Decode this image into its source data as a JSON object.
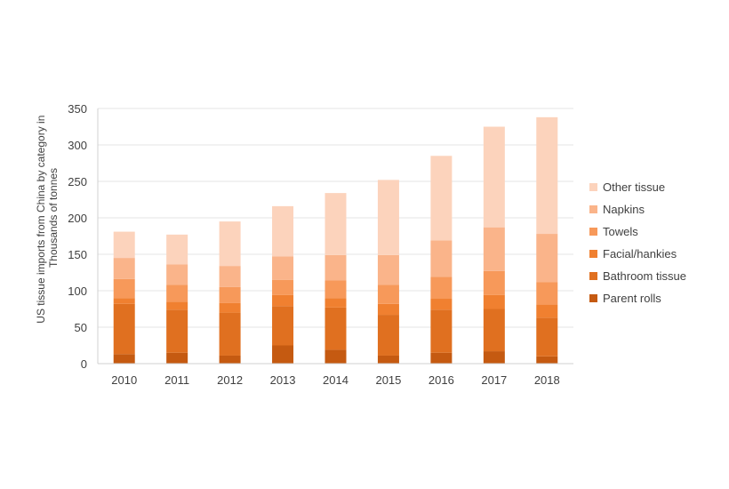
{
  "chart_data": {
    "type": "bar",
    "stacked": true,
    "categories": [
      "2010",
      "2011",
      "2012",
      "2013",
      "2014",
      "2015",
      "2016",
      "2017",
      "2018"
    ],
    "series": [
      {
        "name": "Parent rolls",
        "color": "#c55a11",
        "values": [
          13,
          15,
          11,
          25,
          19,
          11,
          15,
          17,
          10
        ]
      },
      {
        "name": "Bathroom tissue",
        "color": "#e07020",
        "values": [
          69,
          59,
          59,
          54,
          58,
          56,
          59,
          58,
          53
        ]
      },
      {
        "name": "Facial/hankies",
        "color": "#f08030",
        "values": [
          8,
          11,
          13,
          15,
          13,
          15,
          15,
          19,
          18
        ]
      },
      {
        "name": "Towels",
        "color": "#f7995a",
        "values": [
          26,
          23,
          22,
          21,
          24,
          26,
          30,
          33,
          31
        ]
      },
      {
        "name": "Napkins",
        "color": "#fab48a",
        "values": [
          29,
          28,
          29,
          32,
          35,
          41,
          50,
          60,
          66
        ]
      },
      {
        "name": "Other tissue",
        "color": "#fcd3bc",
        "values": [
          36,
          41,
          61,
          69,
          85,
          103,
          116,
          138,
          160
        ]
      }
    ],
    "title": "",
    "xlabel": "",
    "ylabel": "US tissue imports from China by  category in Thousands of tonnes",
    "ylabel_lines": [
      "US tissue imports from China by  category in",
      "Thousands of tonnes"
    ],
    "ylim": [
      0,
      350
    ],
    "yticks": [
      "0",
      "50",
      "100",
      "150",
      "200",
      "250",
      "300",
      "350"
    ],
    "grid": true,
    "legend_position": "right"
  }
}
